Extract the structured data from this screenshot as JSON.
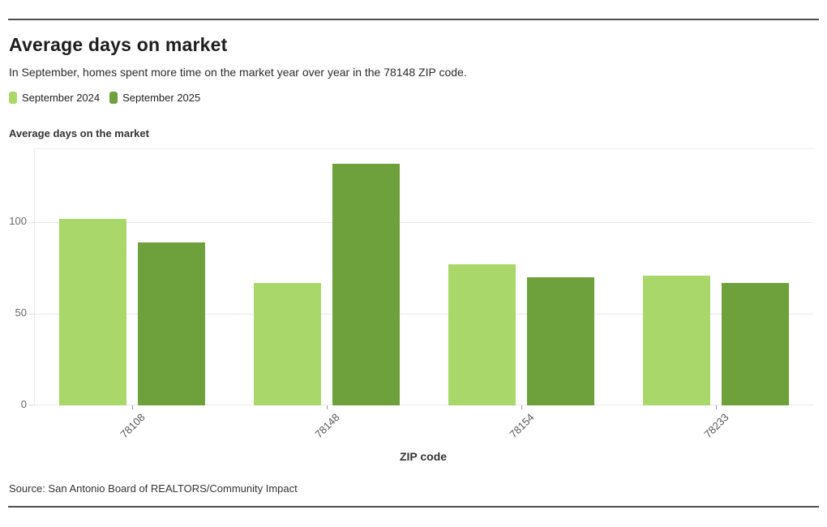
{
  "header": {
    "title": "Average days on market",
    "subtitle": "In September, homes spent more time on the market year over year in the 78148 ZIP code."
  },
  "chart_data": {
    "type": "bar",
    "title": "Average days on the market",
    "xlabel": "ZIP code",
    "ylabel": "Average days on the market",
    "categories": [
      "78108",
      "78148",
      "78154",
      "78233"
    ],
    "series": [
      {
        "name": "September 2024",
        "color": "#aad769",
        "values": [
          102,
          67,
          77,
          71
        ]
      },
      {
        "name": "September 2025",
        "color": "#6ea03c",
        "values": [
          89,
          132,
          70,
          67
        ]
      }
    ],
    "yticks": [
      0,
      50,
      100
    ],
    "ylim": [
      0,
      140
    ],
    "grid": true,
    "legend_position": "top-left"
  },
  "source": "Source: San Antonio Board of REALTORS/Community Impact"
}
